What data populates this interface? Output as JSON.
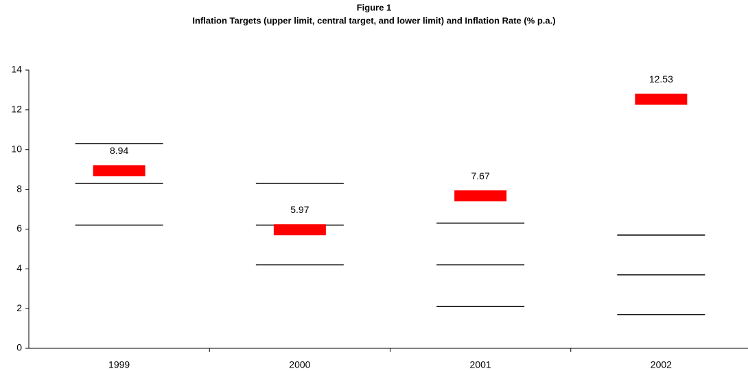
{
  "chart_data": {
    "type": "marker",
    "title": "Figure 1",
    "subtitle": "Inflation Targets (upper limit, central target, and lower limit) and Inflation Rate (% p.a.)",
    "categories": [
      "1999",
      "2000",
      "2001",
      "2002"
    ],
    "series": [
      {
        "color": "#000000",
        "style": "dash",
        "values": [
          10.3,
          8.3,
          6.3,
          5.7
        ]
      },
      {
        "color": "#000000",
        "style": "dash",
        "values": [
          8.3,
          6.2,
          4.2,
          3.7
        ]
      },
      {
        "color": "#000000",
        "style": "dash",
        "values": [
          6.2,
          4.2,
          2.1,
          1.7
        ]
      },
      {
        "color": "#ff0000",
        "style": "block",
        "values": [
          8.94,
          5.97,
          7.67,
          12.53
        ]
      }
    ],
    "ylim": [
      0,
      14
    ],
    "yticks": [
      0,
      2,
      4,
      6,
      8,
      10,
      12,
      14
    ],
    "grid": false
  }
}
